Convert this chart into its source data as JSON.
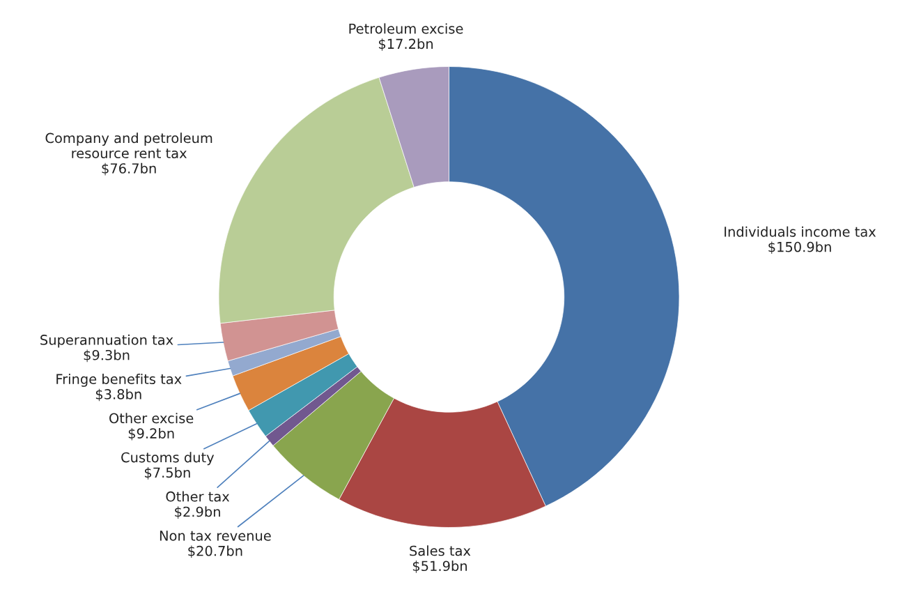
{
  "chart_data": {
    "type": "donut",
    "categories": [
      "Individuals income tax",
      "Sales tax",
      "Non tax revenue",
      "Other tax",
      "Customs duty",
      "Other excise",
      "Fringe benefits tax",
      "Superannuation tax",
      "Company and petroleum resource rent tax",
      "Petroleum excise"
    ],
    "values": [
      150.9,
      51.9,
      20.7,
      2.9,
      7.5,
      9.2,
      3.8,
      9.3,
      76.7,
      17.2
    ],
    "value_labels": [
      "$150.9bn",
      "$51.9bn",
      "$20.7bn",
      "$2.9bn",
      "$7.5bn",
      "$9.2bn",
      "$3.8bn",
      "$9.3bn",
      "$76.7bn",
      "$17.2bn"
    ],
    "colors": [
      "#4572a7",
      "#aa4643",
      "#89a54e",
      "#71588f",
      "#4198af",
      "#db843d",
      "#93a9cf",
      "#d19392",
      "#b9cd96",
      "#a99bbd"
    ],
    "legend": false
  }
}
